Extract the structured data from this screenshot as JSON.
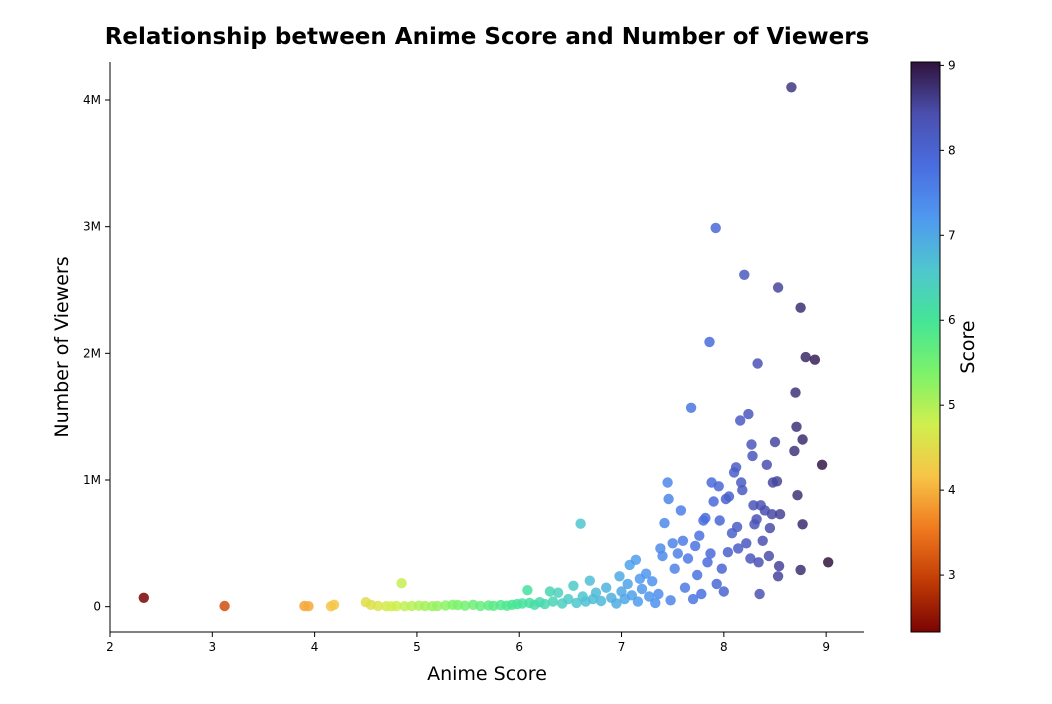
{
  "chart_data": {
    "type": "scatter",
    "title": "Relationship between Anime Score and Number of Viewers",
    "xlabel": "Anime Score",
    "ylabel": "Number of Viewers",
    "xlim": [
      2.0,
      9.37
    ],
    "ylim": [
      -200000,
      4300000
    ],
    "xticks": [
      2,
      3,
      4,
      5,
      6,
      7,
      8,
      9
    ],
    "yticks": [
      {
        "value": 0,
        "label": "0"
      },
      {
        "value": 1000000,
        "label": "1M"
      },
      {
        "value": 2000000,
        "label": "2M"
      },
      {
        "value": 3000000,
        "label": "3M"
      },
      {
        "value": 4000000,
        "label": "4M"
      }
    ],
    "grid": false,
    "colorbar": {
      "label": "Score",
      "min": 2.33,
      "max": 9.04,
      "ticks": [
        3,
        4,
        5,
        6,
        7,
        8,
        9
      ],
      "colormap": "turbo",
      "stops": [
        "#7a0403",
        "#c23c05",
        "#f07a1f",
        "#f7c447",
        "#d0ef4e",
        "#7cf26a",
        "#45e597",
        "#4fc6cf",
        "#4f98f0",
        "#4a6ddf",
        "#4b4fae",
        "#30123b"
      ]
    },
    "marker": {
      "alpha": 0.85
    },
    "points": [
      [
        2.33,
        70000
      ],
      [
        3.12,
        5000
      ],
      [
        3.9,
        5000
      ],
      [
        3.94,
        4000
      ],
      [
        4.16,
        3000
      ],
      [
        4.19,
        15000
      ],
      [
        4.5,
        35000
      ],
      [
        4.55,
        15000
      ],
      [
        4.62,
        6000
      ],
      [
        4.7,
        4000
      ],
      [
        4.75,
        3000
      ],
      [
        4.8,
        5000
      ],
      [
        4.85,
        185000
      ],
      [
        4.88,
        4000
      ],
      [
        4.95,
        6000
      ],
      [
        5.02,
        8000
      ],
      [
        5.08,
        5000
      ],
      [
        5.15,
        4000
      ],
      [
        5.2,
        6000
      ],
      [
        5.28,
        10000
      ],
      [
        5.35,
        15000
      ],
      [
        5.4,
        12000
      ],
      [
        5.47,
        8000
      ],
      [
        5.55,
        15000
      ],
      [
        5.62,
        6000
      ],
      [
        5.7,
        10000
      ],
      [
        5.75,
        7000
      ],
      [
        5.82,
        12000
      ],
      [
        5.88,
        8000
      ],
      [
        5.93,
        15000
      ],
      [
        5.98,
        20000
      ],
      [
        6.03,
        25000
      ],
      [
        6.08,
        130000
      ],
      [
        6.1,
        30000
      ],
      [
        6.15,
        15000
      ],
      [
        6.2,
        35000
      ],
      [
        6.25,
        20000
      ],
      [
        6.3,
        120000
      ],
      [
        6.33,
        40000
      ],
      [
        6.38,
        110000
      ],
      [
        6.42,
        25000
      ],
      [
        6.48,
        60000
      ],
      [
        6.53,
        165000
      ],
      [
        6.56,
        30000
      ],
      [
        6.6,
        655000
      ],
      [
        6.62,
        80000
      ],
      [
        6.65,
        40000
      ],
      [
        6.69,
        205000
      ],
      [
        6.72,
        60000
      ],
      [
        6.75,
        110000
      ],
      [
        6.8,
        45000
      ],
      [
        6.85,
        150000
      ],
      [
        6.9,
        70000
      ],
      [
        6.95,
        25000
      ],
      [
        6.98,
        240000
      ],
      [
        7.0,
        120000
      ],
      [
        7.03,
        60000
      ],
      [
        7.06,
        180000
      ],
      [
        7.08,
        330000
      ],
      [
        7.1,
        90000
      ],
      [
        7.14,
        370000
      ],
      [
        7.16,
        40000
      ],
      [
        7.18,
        220000
      ],
      [
        7.2,
        140000
      ],
      [
        7.24,
        260000
      ],
      [
        7.27,
        80000
      ],
      [
        7.3,
        200000
      ],
      [
        7.33,
        30000
      ],
      [
        7.36,
        100000
      ],
      [
        7.38,
        460000
      ],
      [
        7.4,
        400000
      ],
      [
        7.42,
        660000
      ],
      [
        7.45,
        980000
      ],
      [
        7.46,
        850000
      ],
      [
        7.48,
        50000
      ],
      [
        7.5,
        500000
      ],
      [
        7.52,
        300000
      ],
      [
        7.55,
        420000
      ],
      [
        7.58,
        760000
      ],
      [
        7.6,
        520000
      ],
      [
        7.62,
        150000
      ],
      [
        7.65,
        380000
      ],
      [
        7.68,
        1570000
      ],
      [
        7.7,
        60000
      ],
      [
        7.72,
        480000
      ],
      [
        7.74,
        250000
      ],
      [
        7.76,
        560000
      ],
      [
        7.78,
        100000
      ],
      [
        7.8,
        680000
      ],
      [
        7.82,
        700000
      ],
      [
        7.84,
        350000
      ],
      [
        7.86,
        2090000
      ],
      [
        7.87,
        420000
      ],
      [
        7.88,
        980000
      ],
      [
        7.9,
        830000
      ],
      [
        7.92,
        2990000
      ],
      [
        7.93,
        180000
      ],
      [
        7.95,
        950000
      ],
      [
        7.96,
        680000
      ],
      [
        7.98,
        300000
      ],
      [
        8.0,
        120000
      ],
      [
        8.02,
        850000
      ],
      [
        8.04,
        430000
      ],
      [
        8.05,
        870000
      ],
      [
        8.08,
        580000
      ],
      [
        8.1,
        1060000
      ],
      [
        8.12,
        1100000
      ],
      [
        8.13,
        630000
      ],
      [
        8.14,
        460000
      ],
      [
        8.16,
        1470000
      ],
      [
        8.17,
        980000
      ],
      [
        8.18,
        920000
      ],
      [
        8.2,
        2620000
      ],
      [
        8.22,
        500000
      ],
      [
        8.24,
        1520000
      ],
      [
        8.26,
        380000
      ],
      [
        8.27,
        1280000
      ],
      [
        8.28,
        1190000
      ],
      [
        8.29,
        800000
      ],
      [
        8.3,
        650000
      ],
      [
        8.32,
        690000
      ],
      [
        8.33,
        1920000
      ],
      [
        8.34,
        350000
      ],
      [
        8.35,
        100000
      ],
      [
        8.36,
        800000
      ],
      [
        8.38,
        520000
      ],
      [
        8.4,
        760000
      ],
      [
        8.42,
        1120000
      ],
      [
        8.44,
        400000
      ],
      [
        8.45,
        620000
      ],
      [
        8.47,
        730000
      ],
      [
        8.48,
        980000
      ],
      [
        8.5,
        1300000
      ],
      [
        8.52,
        990000
      ],
      [
        8.53,
        2520000
      ],
      [
        8.54,
        320000
      ],
      [
        8.55,
        730000
      ],
      [
        8.53,
        240000
      ],
      [
        8.66,
        4100000
      ],
      [
        8.69,
        1230000
      ],
      [
        8.7,
        1690000
      ],
      [
        8.71,
        1420000
      ],
      [
        8.72,
        880000
      ],
      [
        8.75,
        2360000
      ],
      [
        8.75,
        290000
      ],
      [
        8.77,
        1320000
      ],
      [
        8.77,
        650000
      ],
      [
        8.8,
        1970000
      ],
      [
        8.89,
        1950000
      ],
      [
        8.96,
        1120000
      ],
      [
        9.02,
        350000
      ]
    ]
  }
}
